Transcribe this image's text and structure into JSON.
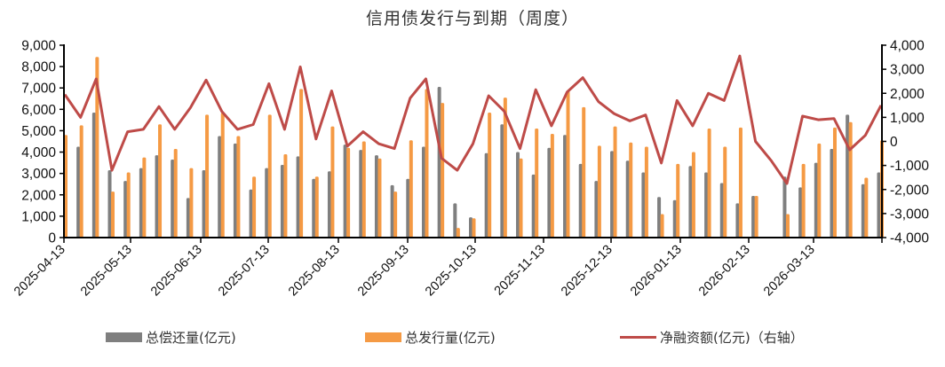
{
  "chart_data": {
    "type": "bar",
    "title": "信用债发行与到期（周度）",
    "xlabel": "",
    "ylabel": "",
    "y2label": "",
    "ylim": [
      0,
      9000
    ],
    "y2lim": [
      -4000,
      4000
    ],
    "yticks": [
      "0",
      "1,000",
      "2,000",
      "3,000",
      "4,000",
      "5,000",
      "6,000",
      "7,000",
      "8,000",
      "9,000"
    ],
    "y2ticks": [
      "-4,000",
      "-3,000",
      "-2,000",
      "-1,000",
      "0",
      "1,000",
      "2,000",
      "3,000",
      "4,000"
    ],
    "x_tick_labels": [
      "2025-04-13",
      "2025-05-13",
      "2025-06-13",
      "2025-07-13",
      "2025-08-13",
      "2025-09-13",
      "2025-10-13",
      "2025-11-13",
      "2025-12-13",
      "2026-01-13",
      "2026-02-13",
      "2026-03-13"
    ],
    "grid": false,
    "legend_position": "bottom",
    "series": [
      {
        "name": "总偿还量(亿元)",
        "type": "bar",
        "axis": "left",
        "color": "#7f7f7f",
        "values": [
          0,
          4250,
          5850,
          3150,
          2650,
          3250,
          3850,
          3650,
          1850,
          3150,
          4750,
          4400,
          2250,
          3250,
          3400,
          3800,
          2750,
          3100,
          4350,
          4100,
          3850,
          2450,
          2750,
          4250,
          7050,
          1600,
          950,
          3950,
          5300,
          4000,
          2950,
          4200,
          4800,
          3450,
          2650,
          4050,
          3600,
          3050,
          1900,
          1750,
          3350,
          3050,
          2550,
          1600,
          1950,
          0,
          2850,
          2350,
          3500,
          4150,
          5750,
          2500,
          3050
        ]
      },
      {
        "name": "总发行量(亿元)",
        "type": "bar",
        "axis": "left",
        "color": "#f59a44",
        "values": [
          4800,
          5250,
          8450,
          2150,
          3050,
          3750,
          5300,
          4150,
          3250,
          5750,
          5850,
          4750,
          2850,
          5750,
          3900,
          6950,
          2850,
          5200,
          4200,
          4500,
          3700,
          2150,
          4550,
          6950,
          6300,
          450,
          900,
          5850,
          6550,
          3700,
          5100,
          4850,
          6850,
          6100,
          4300,
          5200,
          4450,
          4250,
          1100,
          3450,
          4000,
          5100,
          4250,
          5150,
          1950,
          0,
          1100,
          3450,
          4400,
          5150,
          5400,
          2800,
          4550
        ]
      },
      {
        "name": "净融资额(亿元)（右轴）",
        "type": "line",
        "axis": "right",
        "color": "#be4b48",
        "values": [
          1950,
          1000,
          2600,
          -1200,
          400,
          500,
          1450,
          500,
          1400,
          2550,
          1250,
          500,
          700,
          2400,
          500,
          3100,
          100,
          2100,
          -200,
          400,
          -100,
          -300,
          1800,
          2600,
          -700,
          -1200,
          -100,
          1900,
          1250,
          -300,
          2150,
          650,
          2050,
          2650,
          1650,
          1150,
          850,
          1100,
          -900,
          1700,
          650,
          2000,
          1700,
          3550,
          0,
          -800,
          -1750,
          1050,
          900,
          950,
          -350,
          250,
          1500
        ]
      }
    ]
  },
  "legend": {
    "items": [
      {
        "label": "总偿还量(亿元)",
        "color": "#7f7f7f"
      },
      {
        "label": "总发行量(亿元)",
        "color": "#f59a44"
      },
      {
        "label": "净融资额(亿元)（右轴）",
        "color": "#be4b48"
      }
    ]
  }
}
